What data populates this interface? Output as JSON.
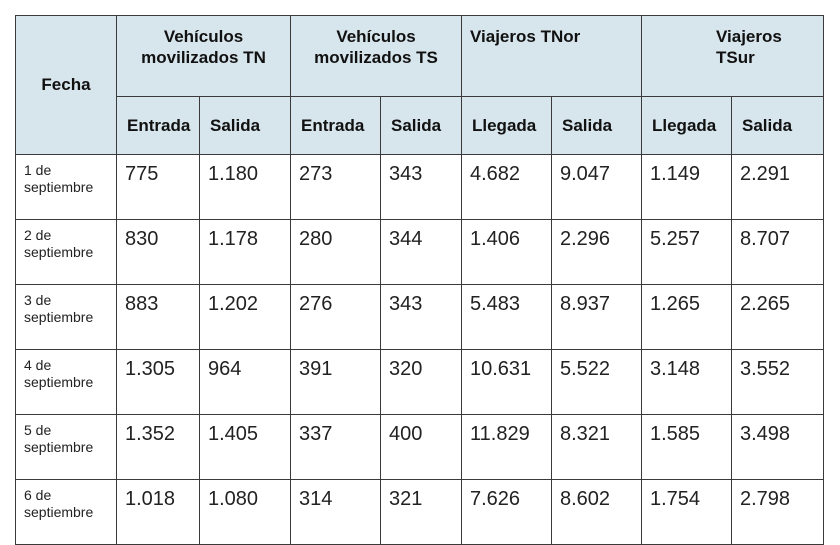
{
  "table": {
    "fecha_header": "Fecha",
    "groups": {
      "tn": "Vehículos movilizados TN",
      "ts": "Vehículos movilizados TS",
      "tnor": "Viajeros TNor",
      "tsur": "Viajeros TSur"
    },
    "subheaders": [
      "Entrada",
      "Salida",
      "Entrada",
      "Salida",
      "Llegada",
      "Salida",
      "Llegada",
      "Salida"
    ],
    "rows": [
      {
        "date": "1 de septiembre",
        "values": [
          "775",
          "1.180",
          "273",
          "343",
          "4.682",
          "9.047",
          "1.149",
          "2.291"
        ]
      },
      {
        "date": "2 de septiembre",
        "values": [
          "830",
          "1.178",
          "280",
          "344",
          "1.406",
          "2.296",
          "5.257",
          "8.707"
        ]
      },
      {
        "date": "3 de septiembre",
        "values": [
          "883",
          "1.202",
          "276",
          "343",
          "5.483",
          "8.937",
          "1.265",
          "2.265"
        ]
      },
      {
        "date": "4 de septiembre",
        "values": [
          "1.305",
          "964",
          "391",
          "320",
          "10.631",
          "5.522",
          "3.148",
          "3.552"
        ]
      },
      {
        "date": "5 de septiembre",
        "values": [
          "1.352",
          "1.405",
          "337",
          "400",
          "11.829",
          "8.321",
          "1.585",
          "3.498"
        ]
      },
      {
        "date": "6 de septiembre",
        "values": [
          "1.018",
          "1.080",
          "314",
          "321",
          "7.626",
          "8.602",
          "1.754",
          "2.798"
        ]
      }
    ]
  }
}
